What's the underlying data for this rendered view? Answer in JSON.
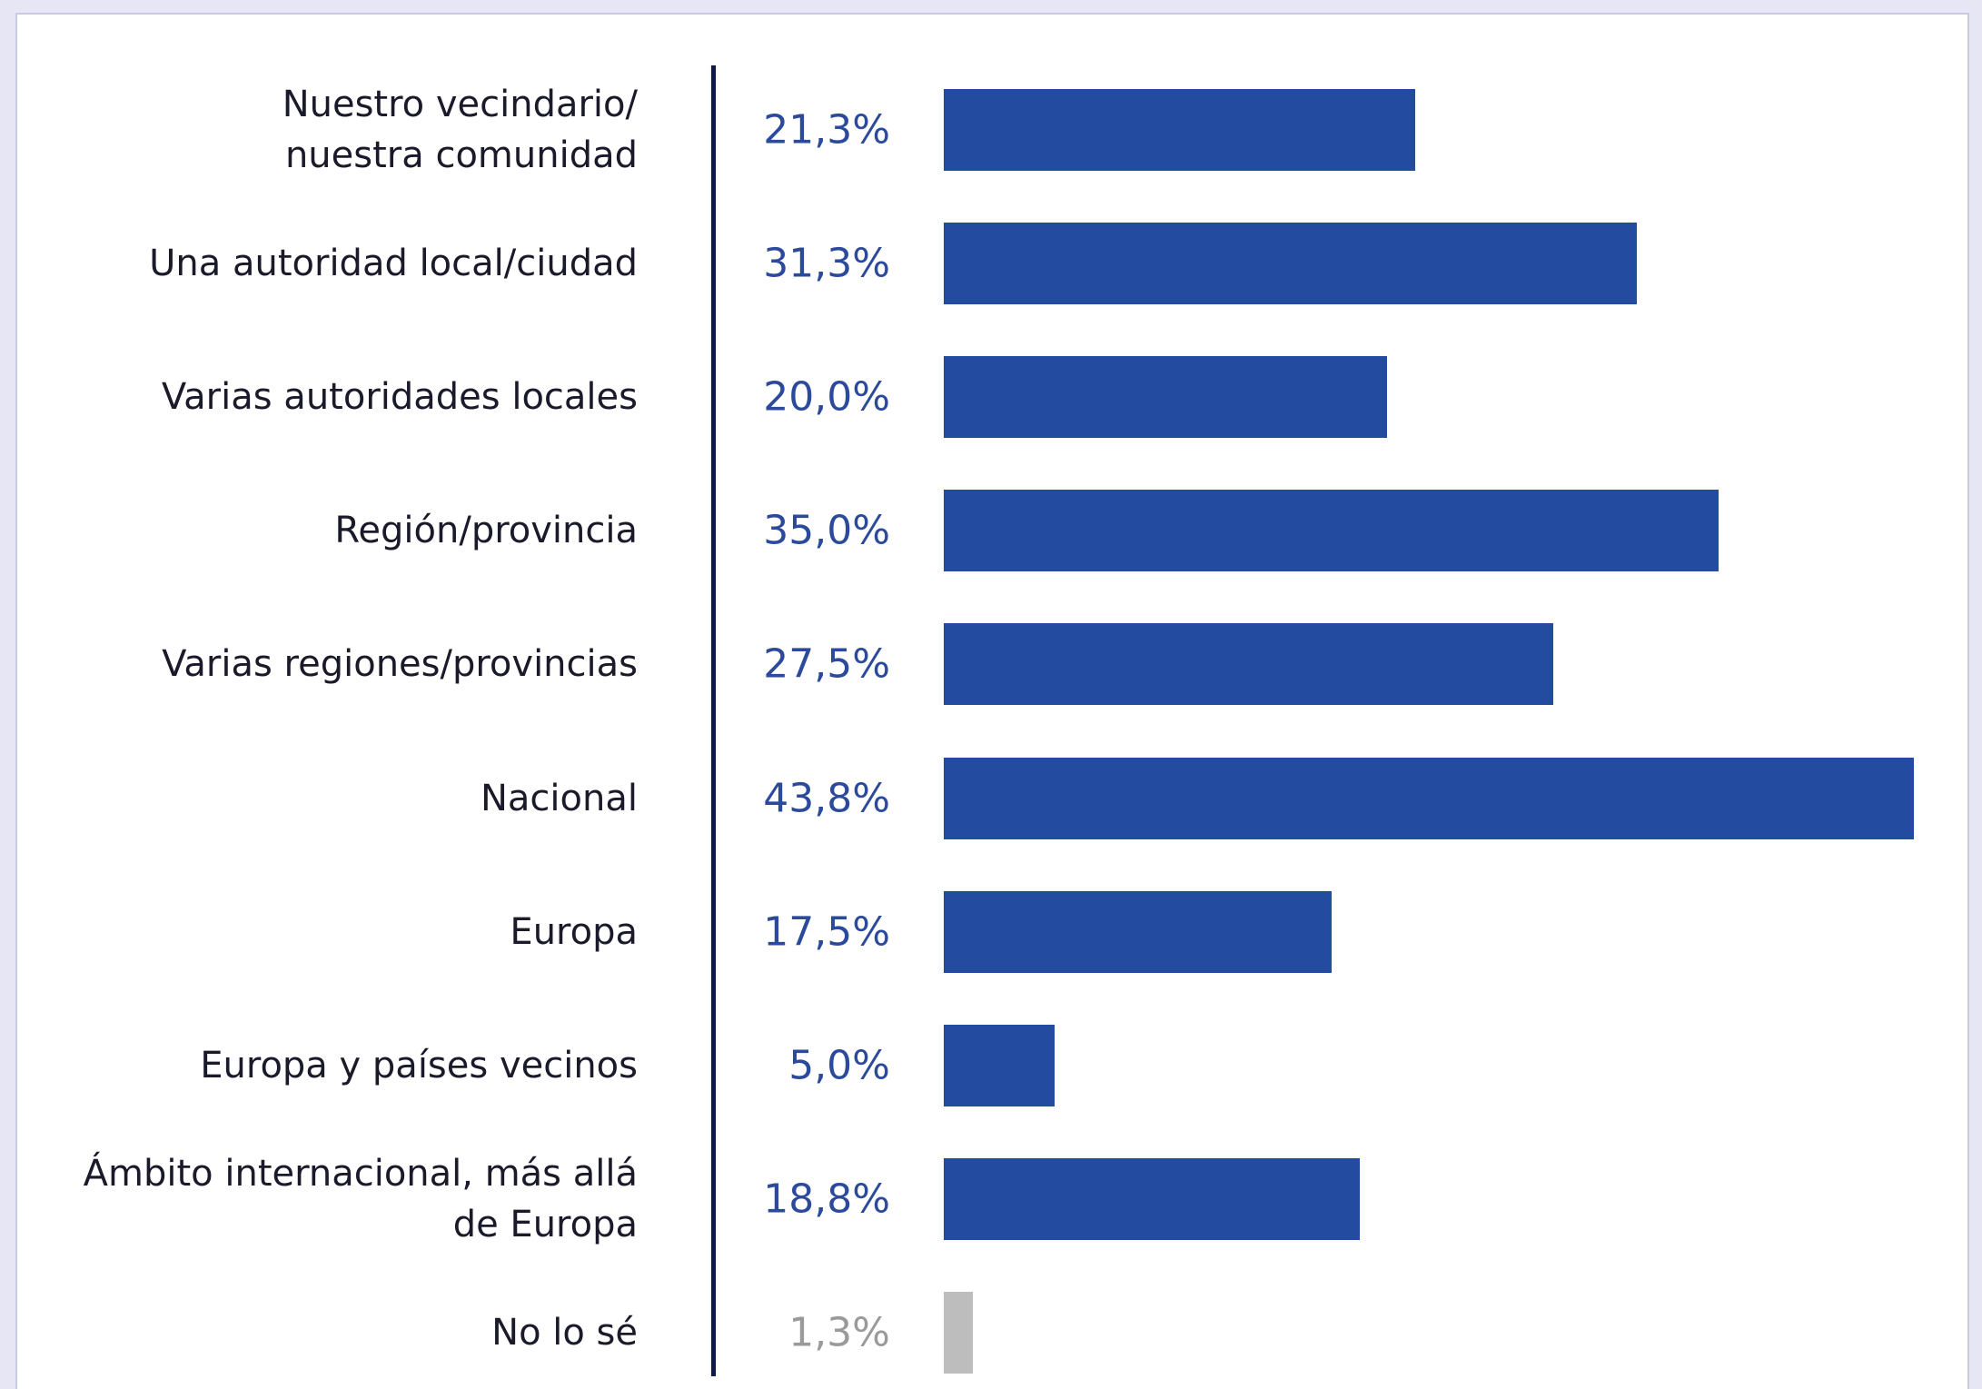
{
  "chart_data": {
    "type": "bar",
    "orientation": "horizontal",
    "categories": [
      "Nuestro vecindario/\nnuestra comunidad",
      "Una autoridad local/ciudad",
      "Varias autoridades locales",
      "Región/provincia",
      "Varias regiones/provincias",
      "Nacional",
      "Europa",
      "Europa y países vecinos",
      "Ámbito internacional, más allá\nde Europa",
      "No lo sé"
    ],
    "values": [
      21.3,
      31.3,
      20.0,
      35.0,
      27.5,
      43.8,
      17.5,
      5.0,
      18.8,
      1.3
    ],
    "value_labels": [
      "21,3%",
      "31,3%",
      "20,0%",
      "35,0%",
      "27,5%",
      "43,8%",
      "17,5%",
      "5,0%",
      "18,8%",
      "1,3%"
    ],
    "colors": [
      "#234b9f",
      "#234b9f",
      "#234b9f",
      "#234b9f",
      "#234b9f",
      "#234b9f",
      "#234b9f",
      "#234b9f",
      "#234b9f",
      "#bdbdbd"
    ],
    "label_colors": [
      "#2b4a9b",
      "#2b4a9b",
      "#2b4a9b",
      "#2b4a9b",
      "#2b4a9b",
      "#2b4a9b",
      "#2b4a9b",
      "#2b4a9b",
      "#2b4a9b",
      "#9a9a9a"
    ]
  }
}
